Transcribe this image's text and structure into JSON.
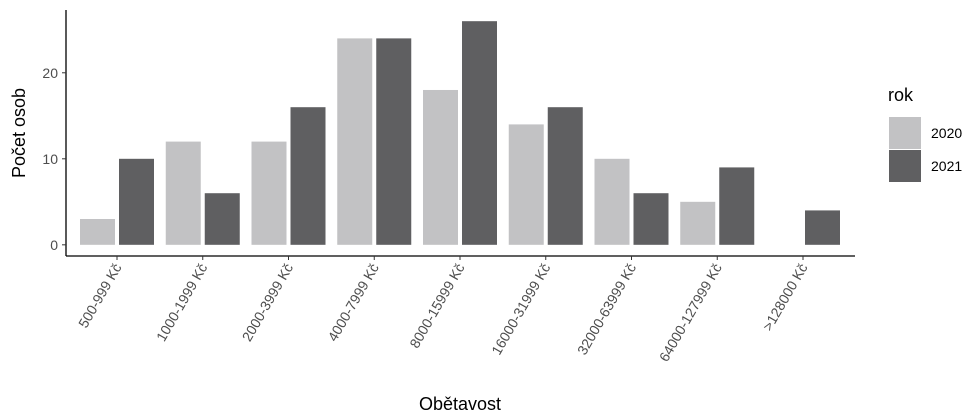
{
  "chart_data": {
    "type": "bar",
    "xlabel": "Obětavost",
    "ylabel": "Počet osob",
    "categories": [
      "500-999 Kč",
      "1000-1999 Kč",
      "2000-3999 Kč",
      "4000-7999 Kč",
      "8000-15999 Kč",
      "16000-31999 Kč",
      "32000-63999 Kč",
      "64000-127999 Kč",
      ">128000 Kč"
    ],
    "series": [
      {
        "name": "2020",
        "color": "#c2c2c4",
        "values": [
          3,
          12,
          12,
          24,
          18,
          14,
          10,
          5,
          null
        ]
      },
      {
        "name": "2021",
        "color": "#5f5f61",
        "values": [
          10,
          6,
          16,
          24,
          26,
          16,
          6,
          9,
          4
        ]
      }
    ],
    "yticks": [
      0,
      10,
      20
    ],
    "ylim": [
      -1.3,
      27.3
    ],
    "grid": false,
    "legend": {
      "title": "rok",
      "position": "right"
    }
  }
}
